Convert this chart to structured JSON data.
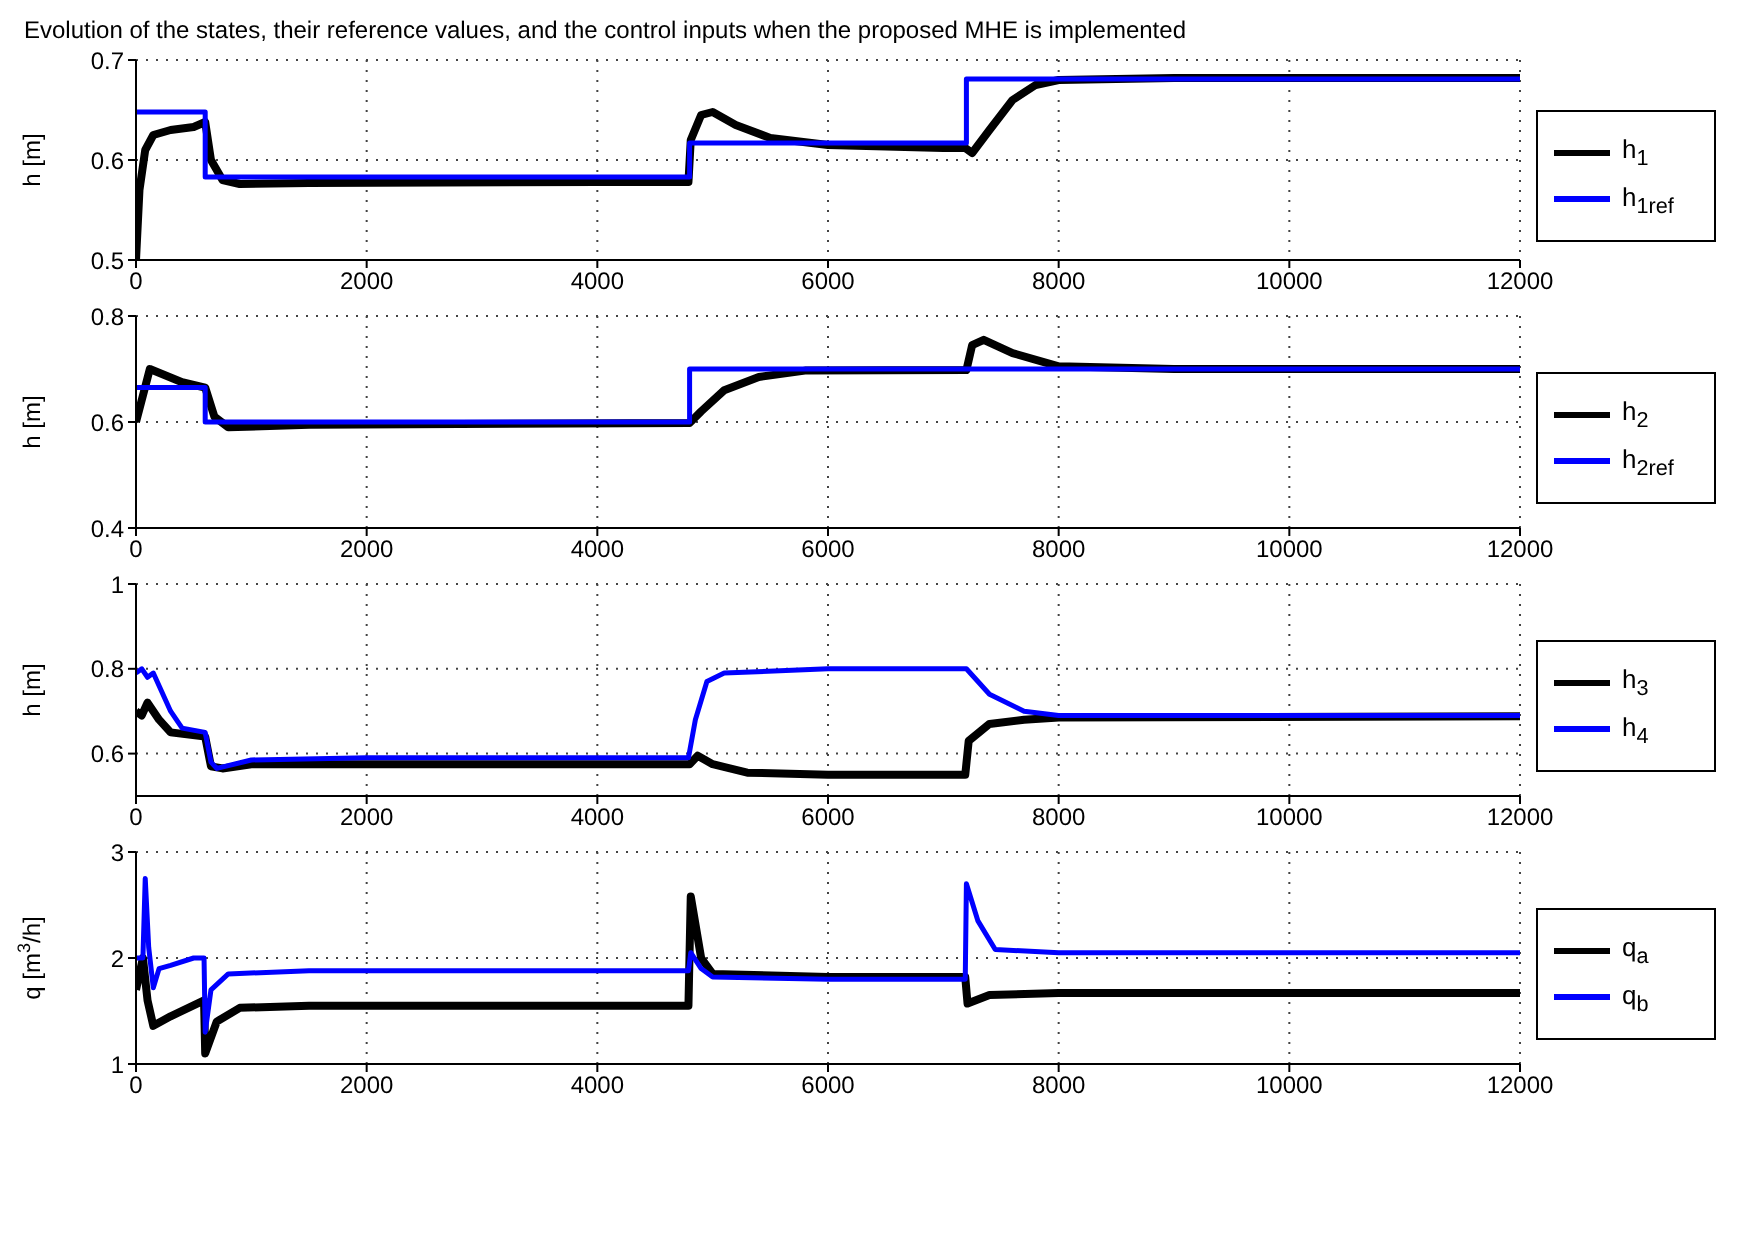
{
  "chart_data": [
    {
      "type": "line",
      "title": "Evolution of the states, their reference values, and the control inputs when the proposed MHE is implemented",
      "ylabel": "h [m]",
      "xlim": [
        0,
        12000
      ],
      "xticks": [
        0,
        2000,
        4000,
        6000,
        8000,
        10000,
        12000
      ],
      "ylim": [
        0.5,
        0.7
      ],
      "yticks": [
        0.5,
        0.6,
        0.7
      ],
      "grid": true,
      "legend": "right",
      "marker": "none",
      "line_style": "solid",
      "series": [
        {
          "name": "h$_{1}$",
          "color": "#000000",
          "x": [
            0,
            30,
            80,
            150,
            300,
            500,
            600,
            650,
            750,
            900,
            1500,
            4000,
            4790,
            4810,
            4900,
            5000,
            5200,
            5500,
            6000,
            7000,
            7190,
            7250,
            7400,
            7600,
            7800,
            8000,
            9000,
            12000
          ],
          "values": [
            0.5,
            0.57,
            0.61,
            0.625,
            0.63,
            0.633,
            0.638,
            0.6,
            0.58,
            0.576,
            0.577,
            0.578,
            0.578,
            0.62,
            0.645,
            0.648,
            0.635,
            0.622,
            0.615,
            0.612,
            0.612,
            0.607,
            0.63,
            0.66,
            0.675,
            0.68,
            0.682,
            0.682
          ]
        },
        {
          "name": "h$_{1ref}$",
          "color": "#0000ff",
          "x": [
            0,
            600,
            600,
            4800,
            4800,
            7200,
            7200,
            12000
          ],
          "values": [
            0.648,
            0.648,
            0.583,
            0.583,
            0.617,
            0.617,
            0.681,
            0.681
          ]
        }
      ]
    },
    {
      "type": "line",
      "ylabel": "h [m]",
      "xlim": [
        0,
        12000
      ],
      "xticks": [
        0,
        2000,
        4000,
        6000,
        8000,
        10000,
        12000
      ],
      "ylim": [
        0.4,
        0.8
      ],
      "yticks": [
        0.4,
        0.6,
        0.8
      ],
      "grid": true,
      "legend": "right",
      "marker": "none",
      "line_style": "solid",
      "series": [
        {
          "name": "h$_{2}$",
          "color": "#000000",
          "x": [
            0,
            120,
            400,
            600,
            680,
            800,
            1500,
            4800,
            4900,
            5100,
            5400,
            5800,
            7200,
            7250,
            7350,
            7600,
            8000,
            9000,
            12000
          ],
          "values": [
            0.6,
            0.7,
            0.675,
            0.665,
            0.61,
            0.59,
            0.595,
            0.598,
            0.62,
            0.66,
            0.685,
            0.697,
            0.698,
            0.745,
            0.755,
            0.73,
            0.705,
            0.7,
            0.7
          ]
        },
        {
          "name": "h$_{2ref}$",
          "color": "#0000ff",
          "x": [
            0,
            600,
            600,
            4800,
            4800,
            12000
          ],
          "values": [
            0.665,
            0.665,
            0.6,
            0.6,
            0.7,
            0.7
          ]
        }
      ]
    },
    {
      "type": "line",
      "ylabel": "h [m]",
      "xlim": [
        0,
        12000
      ],
      "xticks": [
        0,
        2000,
        4000,
        6000,
        8000,
        10000,
        12000
      ],
      "ylim": [
        0.5,
        1
      ],
      "yticks": [
        0.6,
        0.8,
        1
      ],
      "grid": true,
      "legend": "right",
      "marker": "none",
      "line_style": "solid",
      "series": [
        {
          "name": "h$_{3}$",
          "color": "#000000",
          "x": [
            0,
            50,
            100,
            200,
            300,
            600,
            650,
            750,
            1000,
            4800,
            4870,
            5000,
            5300,
            6000,
            7190,
            7220,
            7400,
            7700,
            8000,
            12000
          ],
          "values": [
            0.7,
            0.69,
            0.72,
            0.68,
            0.65,
            0.64,
            0.57,
            0.565,
            0.575,
            0.575,
            0.595,
            0.575,
            0.555,
            0.55,
            0.55,
            0.63,
            0.67,
            0.68,
            0.685,
            0.688
          ]
        },
        {
          "name": "h$_{4}$",
          "color": "#0000ff",
          "x": [
            0,
            50,
            100,
            150,
            200,
            300,
            400,
            600,
            650,
            700,
            1000,
            2000,
            4790,
            4850,
            4950,
            5100,
            6000,
            7200,
            7400,
            7700,
            8000,
            12000
          ],
          "values": [
            0.79,
            0.8,
            0.78,
            0.79,
            0.76,
            0.7,
            0.66,
            0.65,
            0.58,
            0.565,
            0.585,
            0.59,
            0.59,
            0.68,
            0.77,
            0.79,
            0.8,
            0.8,
            0.74,
            0.7,
            0.69,
            0.69
          ]
        }
      ]
    },
    {
      "type": "line",
      "ylabel": "q [m$^{3}$/h]",
      "xlim": [
        0,
        12000
      ],
      "xticks": [
        0,
        2000,
        4000,
        6000,
        8000,
        10000,
        12000
      ],
      "ylim": [
        1,
        3
      ],
      "yticks": [
        1,
        2,
        3
      ],
      "grid": true,
      "legend": "right",
      "marker": "none",
      "line_style": "solid",
      "series": [
        {
          "name": "q$_{a}$",
          "color": "#000000",
          "x": [
            0,
            60,
            100,
            150,
            300,
            590,
            600,
            700,
            900,
            1500,
            4790,
            4810,
            4900,
            5000,
            6000,
            7190,
            7210,
            7400,
            8000,
            12000
          ],
          "values": [
            1.7,
            2.0,
            1.6,
            1.36,
            1.45,
            1.6,
            1.1,
            1.4,
            1.53,
            1.55,
            1.55,
            2.58,
            2.0,
            1.85,
            1.82,
            1.82,
            1.57,
            1.65,
            1.67,
            1.67
          ]
        },
        {
          "name": "q$_{b}$",
          "color": "#0000ff",
          "x": [
            0,
            60,
            80,
            110,
            150,
            200,
            300,
            500,
            590,
            600,
            650,
            800,
            1500,
            4790,
            4810,
            4900,
            5000,
            6000,
            7190,
            7200,
            7300,
            7450,
            8000,
            12000
          ],
          "values": [
            2.0,
            2.0,
            2.75,
            2.1,
            1.72,
            1.9,
            1.93,
            2.0,
            2.0,
            1.3,
            1.7,
            1.85,
            1.88,
            1.88,
            2.05,
            1.9,
            1.82,
            1.8,
            1.8,
            2.7,
            2.35,
            2.08,
            2.05,
            2.05
          ]
        }
      ]
    }
  ]
}
